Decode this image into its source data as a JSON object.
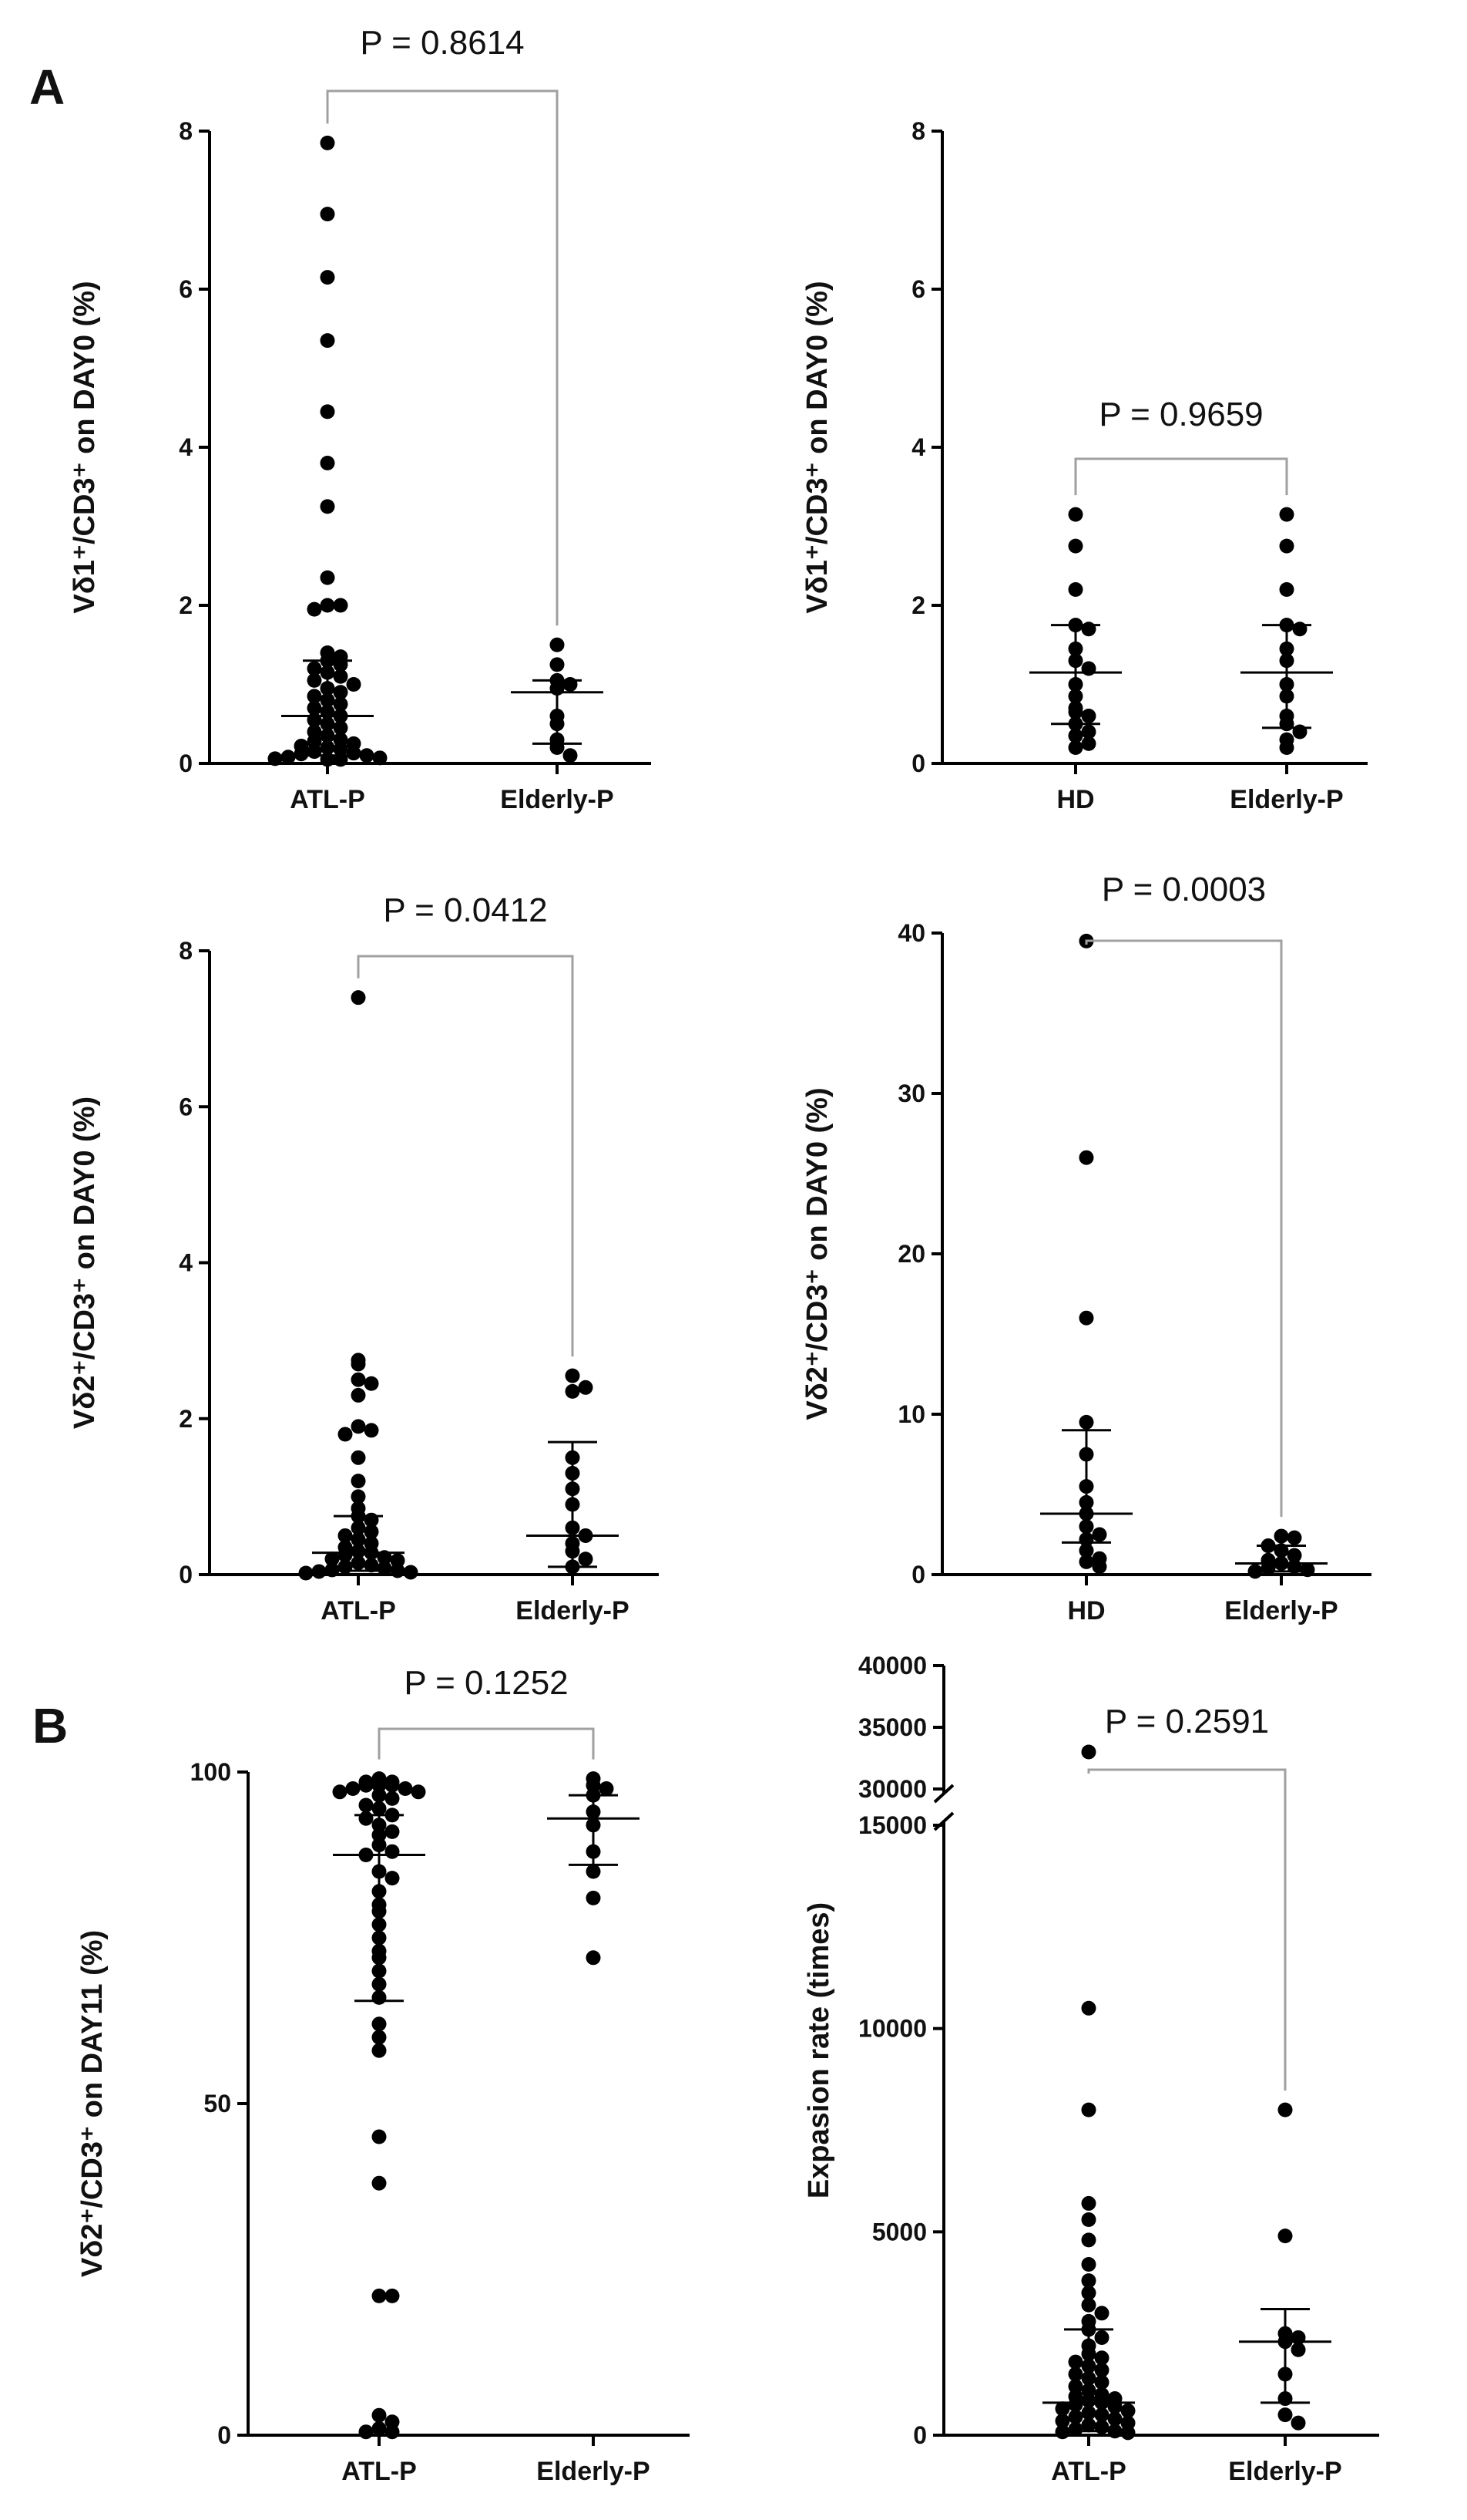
{
  "figure": {
    "panel_a": "A",
    "panel_b": "B"
  },
  "chart_data": [
    {
      "id": "a1",
      "type": "scatter",
      "panel": "A",
      "ylabel": "Vδ1⁺/CD3⁺ on DAY0 (%)",
      "ylim": [
        0,
        8
      ],
      "yticks": [
        0,
        2,
        4,
        6,
        8
      ],
      "categories": [
        "ATL-P",
        "Elderly-P"
      ],
      "p_value": "P = 0.8614",
      "groups": [
        {
          "name": "ATL-P",
          "median": 0.6,
          "lower": 0.1,
          "upper": 1.3,
          "values": [
            7.85,
            6.95,
            6.15,
            5.35,
            4.45,
            3.8,
            3.25,
            2.35,
            2.0,
            2.0,
            1.95,
            1.4,
            1.35,
            1.3,
            1.25,
            1.2,
            1.15,
            1.1,
            1.05,
            1.0,
            0.95,
            0.9,
            0.85,
            0.8,
            0.75,
            0.7,
            0.65,
            0.6,
            0.55,
            0.5,
            0.45,
            0.4,
            0.35,
            0.3,
            0.28,
            0.25,
            0.22,
            0.2,
            0.18,
            0.15,
            0.13,
            0.12,
            0.1,
            0.08,
            0.07,
            0.06,
            0.05,
            0.05
          ]
        },
        {
          "name": "Elderly-P",
          "median": 0.9,
          "lower": 0.25,
          "upper": 1.05,
          "values": [
            1.5,
            1.25,
            1.05,
            1.0,
            0.95,
            0.6,
            0.5,
            0.3,
            0.2,
            0.1
          ]
        }
      ]
    },
    {
      "id": "a2",
      "type": "scatter",
      "panel": "A",
      "ylabel": "Vδ1⁺/CD3⁺ on DAY0 (%)",
      "ylim": [
        0,
        8
      ],
      "yticks": [
        0,
        2,
        4,
        6,
        8
      ],
      "categories": [
        "HD",
        "Elderly-P"
      ],
      "p_value": "P = 0.9659",
      "groups": [
        {
          "name": "HD",
          "median": 1.15,
          "lower": 0.5,
          "upper": 1.75,
          "values": [
            3.15,
            2.75,
            2.2,
            1.75,
            1.7,
            1.45,
            1.3,
            1.2,
            1.0,
            0.85,
            0.7,
            0.65,
            0.6,
            0.5,
            0.4,
            0.35,
            0.25,
            0.2
          ]
        },
        {
          "name": "Elderly-P",
          "median": 1.15,
          "lower": 0.45,
          "upper": 1.75,
          "values": [
            3.15,
            2.75,
            2.2,
            1.75,
            1.7,
            1.45,
            1.3,
            1.0,
            0.85,
            0.6,
            0.5,
            0.4,
            0.3,
            0.2
          ]
        }
      ]
    },
    {
      "id": "a3",
      "type": "scatter",
      "panel": "A",
      "ylabel": "Vδ2⁺/CD3⁺ on DAY0 (%)",
      "ylim": [
        0,
        8
      ],
      "yticks": [
        0,
        2,
        4,
        6,
        8
      ],
      "categories": [
        "ATL-P",
        "Elderly-P"
      ],
      "p_value": "P = 0.0412",
      "groups": [
        {
          "name": "ATL-P",
          "median": 0.28,
          "lower": 0.05,
          "upper": 0.75,
          "values": [
            7.4,
            2.75,
            2.7,
            2.5,
            2.45,
            2.3,
            1.9,
            1.85,
            1.8,
            1.5,
            1.2,
            1.0,
            0.85,
            0.75,
            0.7,
            0.6,
            0.55,
            0.5,
            0.45,
            0.4,
            0.35,
            0.3,
            0.28,
            0.25,
            0.22,
            0.2,
            0.18,
            0.15,
            0.12,
            0.1,
            0.08,
            0.06,
            0.05,
            0.04,
            0.03,
            0.02
          ]
        },
        {
          "name": "Elderly-P",
          "median": 0.5,
          "lower": 0.1,
          "upper": 1.7,
          "values": [
            2.55,
            2.4,
            2.35,
            1.5,
            1.3,
            1.1,
            0.9,
            0.6,
            0.5,
            0.4,
            0.3,
            0.2,
            0.1
          ]
        }
      ]
    },
    {
      "id": "a4",
      "type": "scatter",
      "panel": "A",
      "ylabel": "Vδ2⁺/CD3⁺ on DAY0 (%)",
      "ylim": [
        0,
        40
      ],
      "yticks": [
        0,
        10,
        20,
        30,
        40
      ],
      "categories": [
        "HD",
        "Elderly-P"
      ],
      "p_value": "P = 0.0003",
      "groups": [
        {
          "name": "HD",
          "median": 3.8,
          "lower": 2.0,
          "upper": 9.0,
          "values": [
            39.5,
            26.0,
            16.0,
            9.5,
            7.5,
            5.5,
            4.5,
            3.8,
            3.0,
            2.5,
            2.2,
            1.5,
            1.0,
            0.8,
            0.5
          ]
        },
        {
          "name": "Elderly-P",
          "median": 0.7,
          "lower": 0.2,
          "upper": 1.8,
          "values": [
            2.4,
            2.3,
            1.8,
            1.5,
            1.2,
            0.9,
            0.7,
            0.5,
            0.4,
            0.3,
            0.2
          ]
        }
      ]
    },
    {
      "id": "b1",
      "type": "scatter",
      "panel": "B",
      "ylabel": "Vδ2⁺/CD3⁺ on DAY11 (%)",
      "ylim": [
        0,
        100
      ],
      "yticks": [
        0,
        50,
        100
      ],
      "categories": [
        "ATL-P",
        "Elderly-P"
      ],
      "p_value": "P = 0.1252",
      "groups": [
        {
          "name": "ATL-P",
          "median": 87.5,
          "lower": 65.5,
          "upper": 93.5,
          "values": [
            99,
            98.5,
            98.5,
            98,
            98,
            98,
            97.5,
            97.5,
            97,
            97,
            96.5,
            96,
            95,
            94.5,
            93.5,
            93,
            92,
            91,
            90.5,
            89,
            88,
            87.5,
            85,
            84,
            82,
            80,
            79,
            77,
            75,
            73,
            72,
            70,
            68,
            66,
            62,
            60,
            58,
            45,
            38,
            21,
            21,
            3,
            2,
            1,
            0.5,
            0.5
          ]
        },
        {
          "name": "Elderly-P",
          "median": 93,
          "lower": 86,
          "upper": 96.5,
          "values": [
            99,
            98,
            97.5,
            96.5,
            94,
            92,
            88,
            85,
            81,
            72
          ]
        }
      ]
    },
    {
      "id": "b2",
      "type": "scatter",
      "panel": "B",
      "ylabel": "Expasion rate (times)",
      "ylim": [
        0,
        40000
      ],
      "axis_break": [
        15000,
        30000
      ],
      "yticks": [
        0,
        5000,
        10000,
        15000,
        30000,
        35000,
        40000
      ],
      "ytick_labels": [
        "0",
        "5000",
        "10000",
        "15000",
        "30000",
        "35000",
        "40000"
      ],
      "categories": [
        "ATL-P",
        "Elderly-P"
      ],
      "p_value": "P = 0.2591",
      "groups": [
        {
          "name": "ATL-P",
          "median": 800,
          "lower": 100,
          "upper": 2600,
          "values": [
            33000,
            10500,
            8000,
            5700,
            5300,
            4800,
            4200,
            3800,
            3500,
            3200,
            3000,
            2800,
            2600,
            2400,
            2200,
            2000,
            1900,
            1800,
            1700,
            1600,
            1500,
            1400,
            1300,
            1200,
            1100,
            1000,
            950,
            900,
            850,
            800,
            750,
            700,
            650,
            600,
            550,
            500,
            450,
            400,
            350,
            300,
            250,
            200,
            150,
            100,
            80,
            60
          ]
        },
        {
          "name": "Elderly-P",
          "median": 2300,
          "lower": 800,
          "upper": 3100,
          "values": [
            8000,
            4900,
            2500,
            2400,
            2300,
            2100,
            1500,
            900,
            500,
            300
          ]
        }
      ]
    }
  ]
}
